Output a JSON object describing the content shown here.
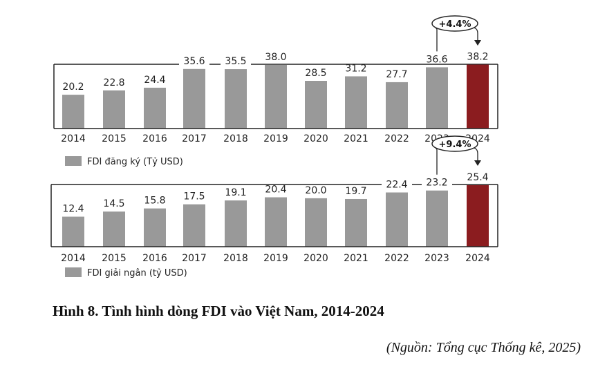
{
  "figure": {
    "caption": "Hình 8. Tình hình dòng FDI vào Việt Nam, 2014-2024",
    "source": "(Nguồn: Tổng cục Thống kê, 2025)"
  },
  "colors": {
    "bar": "#999999",
    "highlight": "#8b1c1f",
    "frame": "#222222"
  },
  "chart_data": [
    {
      "type": "bar",
      "title": "",
      "legend": "FDI đăng ký (Tỷ USD)",
      "categories": [
        "2014",
        "2015",
        "2016",
        "2017",
        "2018",
        "2019",
        "2020",
        "2021",
        "2022",
        "2023",
        "2024"
      ],
      "values": [
        20.2,
        22.8,
        24.4,
        35.6,
        35.5,
        38.0,
        28.5,
        31.2,
        27.7,
        36.6,
        38.2
      ],
      "value_labels": [
        "20.2",
        "22.8",
        "24.4",
        "35.6",
        "35.5",
        "38.0",
        "28.5",
        "31.2",
        "27.7",
        "36.6",
        "38.2"
      ],
      "highlight_index": 10,
      "annotation": "+4.4%",
      "ylim": [
        0,
        38
      ],
      "legend_position": "bottom-left"
    },
    {
      "type": "bar",
      "title": "",
      "legend": "FDI giải ngân (tỷ USD)",
      "categories": [
        "2014",
        "2015",
        "2016",
        "2017",
        "2018",
        "2019",
        "2020",
        "2021",
        "2022",
        "2023",
        "2024"
      ],
      "values": [
        12.4,
        14.5,
        15.8,
        17.5,
        19.1,
        20.4,
        20.0,
        19.7,
        22.4,
        23.2,
        25.4
      ],
      "value_labels": [
        "12.4",
        "14.5",
        "15.8",
        "17.5",
        "19.1",
        "20.4",
        "20.0",
        "19.7",
        "22.4",
        "23.2",
        "25.4"
      ],
      "highlight_index": 10,
      "annotation": "+9.4%",
      "ylim": [
        0,
        25.4
      ],
      "legend_position": "bottom-left"
    }
  ]
}
